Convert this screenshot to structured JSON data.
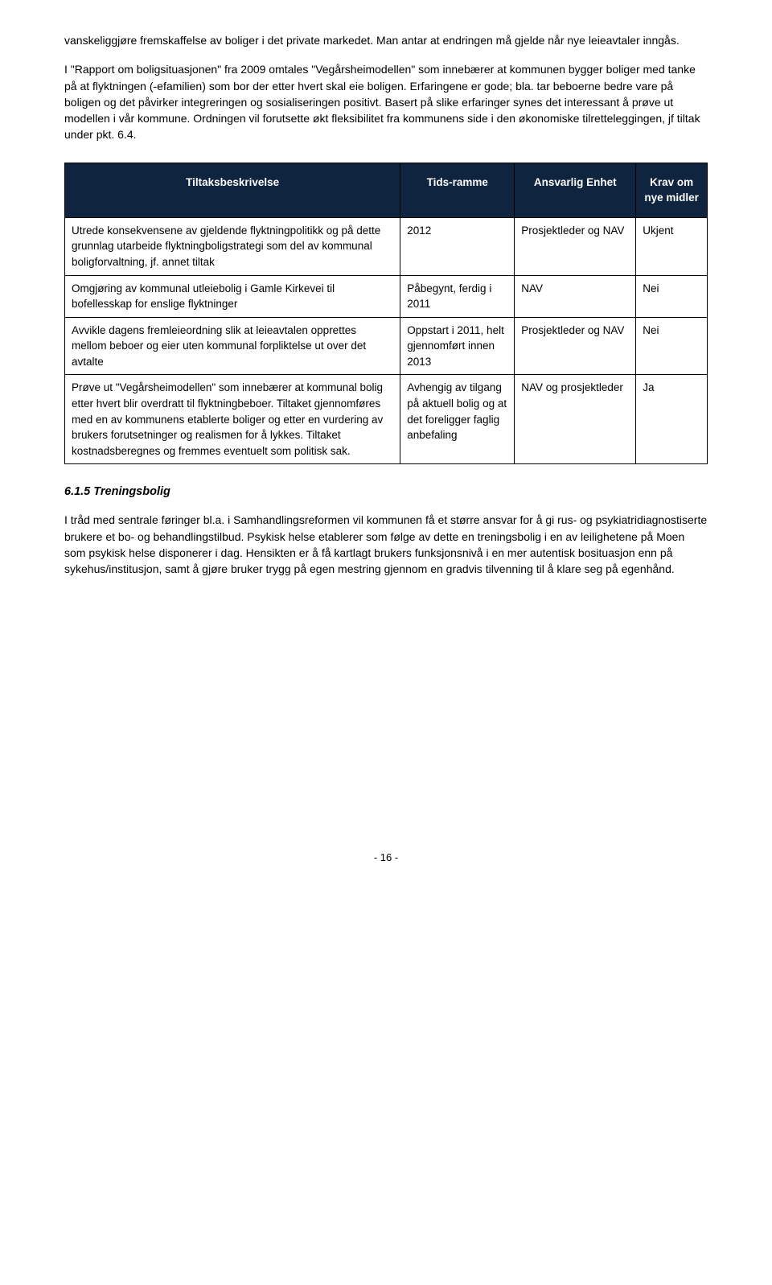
{
  "paragraphs": {
    "p1": "vanskeliggjøre fremskaffelse av boliger i det private markedet. Man antar at endringen må gjelde når nye leieavtaler inngås.",
    "p2": "I \"Rapport om boligsituasjonen\" fra 2009 omtales \"Vegårsheimodellen\" som innebærer at kommunen bygger boliger med tanke på at flyktningen (-efamilien) som bor der etter hvert skal eie boligen. Erfaringene er gode; bla. tar beboerne bedre vare på boligen og det påvirker integreringen og sosialiseringen positivt. Basert på slike erfaringer synes det interessant å prøve ut modellen i vår kommune. Ordningen vil forutsette økt fleksibilitet fra kommunens side i den økonomiske tilretteleggingen, jf tiltak under pkt. 6.4."
  },
  "table": {
    "headers": {
      "tiltak": "Tiltaksbeskrivelse",
      "tids": "Tids-ramme",
      "ansvarlig": "Ansvarlig Enhet",
      "krav": "Krav om nye midler"
    },
    "rows": [
      {
        "tiltak": "Utrede konsekvensene av gjeldende flyktningpolitikk og på dette grunnlag utarbeide flyktningboligstrategi som del av kommunal boligforvaltning, jf. annet tiltak",
        "tids": "2012",
        "ansvarlig": "Prosjektleder og NAV",
        "krav": "Ukjent"
      },
      {
        "tiltak": "Omgjøring av kommunal utleiebolig i Gamle Kirkevei til bofellesskap for enslige flyktninger",
        "tids": "Påbegynt, ferdig i 2011",
        "ansvarlig": "NAV",
        "krav": "Nei"
      },
      {
        "tiltak": "Avvikle dagens fremleieordning slik at leieavtalen opprettes mellom beboer og eier uten kommunal forpliktelse ut over det avtalte",
        "tids": "Oppstart i 2011, helt gjennomført innen 2013",
        "ansvarlig": "Prosjektleder og NAV",
        "krav": "Nei"
      },
      {
        "tiltak": "Prøve ut \"Vegårsheimodellen\" som innebærer at kommunal bolig etter hvert blir overdratt til flyktningbeboer. Tiltaket gjennomføres med en av kommunens etablerte boliger og etter en vurdering av brukers forutsetninger og realismen for å lykkes. Tiltaket kostnadsberegnes og fremmes eventuelt som politisk sak.",
        "tids": "Avhengig av tilgang på aktuell bolig og at det foreligger faglig anbefaling",
        "ansvarlig": "NAV og prosjektleder",
        "krav": "Ja"
      }
    ]
  },
  "section": {
    "number": "6.1.5",
    "title": "Treningsbolig",
    "body": "I tråd med sentrale føringer bl.a. i Samhandlingsreformen vil kommunen få et større ansvar for å gi rus- og psykiatridiagnostiserte brukere et bo- og behandlingstilbud. Psykisk helse etablerer som følge av dette en treningsbolig i en av leilighetene på Moen som psykisk helse disponerer i dag. Hensikten er å få kartlagt brukers funksjonsnivå i en mer autentisk bosituasjon enn på sykehus/institusjon, samt å gjøre bruker trygg på egen mestring gjennom en gradvis tilvenning til å klare seg på egenhånd."
  },
  "pageNumber": "- 16 -"
}
